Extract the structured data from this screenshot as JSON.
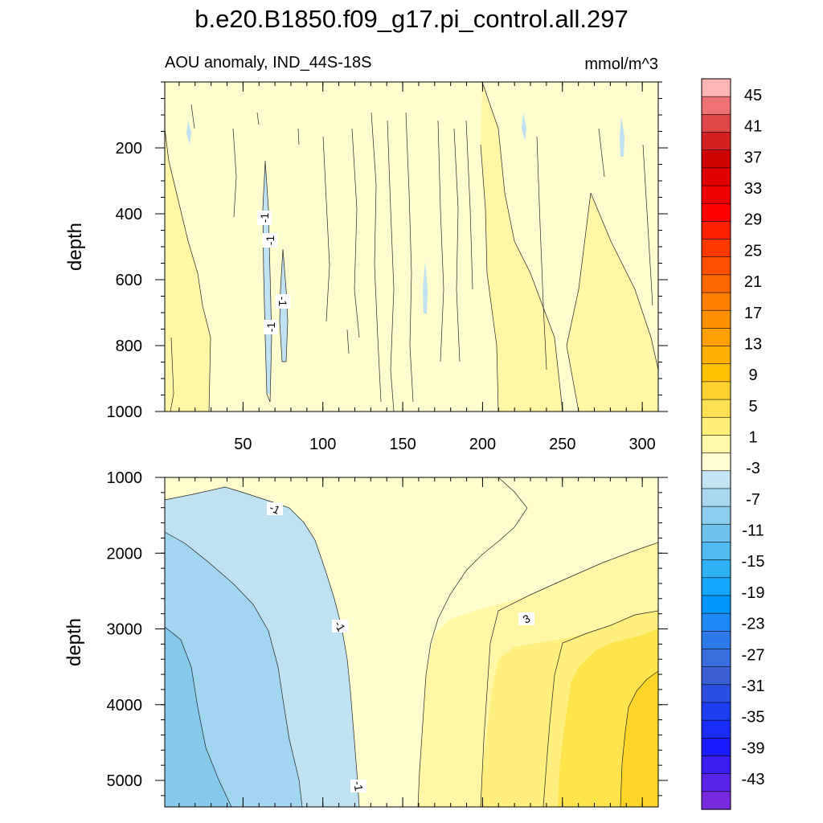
{
  "chart_data": {
    "type": "heatmap",
    "title": "b.e20.B1850.f09_g17.pi_control.all.297",
    "subtitle_left": "AOU anomaly, IND_44S-18S",
    "subtitle_right": "mmol/m^3",
    "ylabel": "depth",
    "xlim": [
      1,
      310
    ],
    "x_ticks": [
      "50",
      "100",
      "150",
      "200",
      "250",
      "300"
    ],
    "x_tick_values": [
      50,
      100,
      150,
      200,
      250,
      300
    ],
    "panels": [
      {
        "name": "upper",
        "ylim": [
          0,
          1000
        ],
        "y_ticks": [
          "200",
          "400",
          "600",
          "800",
          "1000"
        ],
        "y_tick_values": [
          200,
          400,
          600,
          800,
          1000
        ],
        "contour_labels": [
          "-1",
          "-1",
          "-1",
          "-1"
        ],
        "description_fill": "mostly 1 band"
      },
      {
        "name": "lower",
        "ylim": [
          1000,
          5350
        ],
        "y_ticks": [
          "1000",
          "2000",
          "3000",
          "4000",
          "5000"
        ],
        "y_tick_values": [
          1000,
          2000,
          3000,
          4000,
          5000
        ],
        "contour_labels": [
          "-1",
          "-1",
          "-1",
          "3"
        ]
      }
    ],
    "colorbar": {
      "labels": [
        "45",
        "41",
        "37",
        "33",
        "29",
        "25",
        "21",
        "17",
        "13",
        "9",
        "5",
        "1",
        "-3",
        "-7",
        "-11",
        "-15",
        "-19",
        "-23",
        "-27",
        "-31",
        "-35",
        "-39",
        "-43"
      ],
      "colors": [
        "#fdb5b5",
        "#ef7272",
        "#e04848",
        "#d32020",
        "#cf0000",
        "#e00000",
        "#f00000",
        "#ff0000",
        "#ff2000",
        "#ff3800",
        "#ff5000",
        "#ff6800",
        "#ff7f00",
        "#ff9000",
        "#ffa000",
        "#ffb000",
        "#ffc000",
        "#ffd230",
        "#ffe050",
        "#fff07a",
        "#fff8a8",
        "#fffdd0",
        "#c2e4f5",
        "#a8d8f1",
        "#8ccdee",
        "#6fc2ec",
        "#50b9f0",
        "#2eb2f5",
        "#13a8fb",
        "#0096ff",
        "#1e88f5",
        "#2d7aeb",
        "#3a6ee0",
        "#3a5fd6",
        "#2b4de0",
        "#1e3cf0",
        "#1a2cfa",
        "#1a1aff",
        "#3a1ef0",
        "#5a23e8",
        "#7a28e0"
      ]
    },
    "colors": {
      "band_pos1": "#fefdcd",
      "band_pos3": "#fff7a6",
      "band_pos5": "#ffef7e",
      "band_pos9": "#ffe44d",
      "band_pos13": "#ffd52a",
      "band_neg1": "#bfe2f3",
      "band_neg3": "#a2d5ef",
      "band_neg7": "#86c9eb"
    }
  }
}
